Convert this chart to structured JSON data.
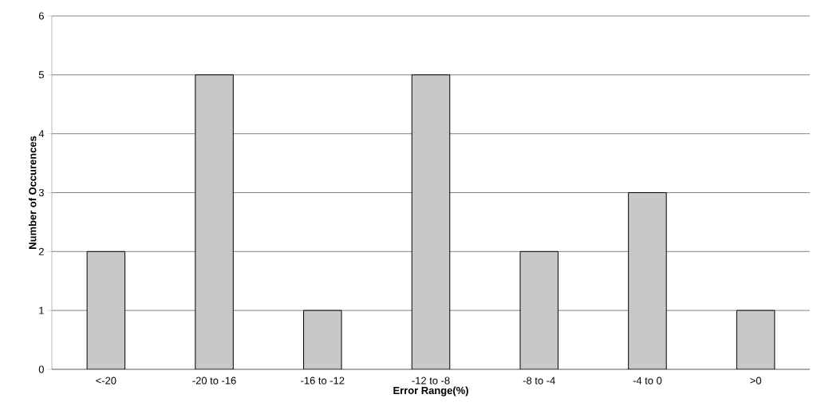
{
  "chart_data": {
    "type": "bar",
    "xlabel": "Error Range(%)",
    "ylabel": "Number of Occurences",
    "categories": [
      "<-20",
      "-20 to -16",
      "-16 to -12",
      "-12 to -8",
      "-8 to -4",
      "-4 to 0",
      ">0"
    ],
    "values": [
      2,
      5,
      1,
      5,
      2,
      3,
      1
    ],
    "color": "#c8c8c8",
    "ylim": [
      0,
      6
    ],
    "yticks": [
      0,
      1,
      2,
      3,
      4,
      5,
      6
    ],
    "grid": "y"
  }
}
